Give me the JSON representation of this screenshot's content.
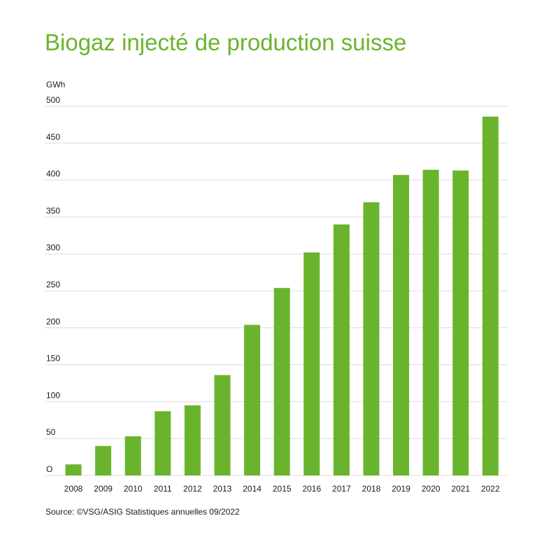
{
  "colors": {
    "bar": "#6ab42d",
    "title": "#6ab42d",
    "grid": "#dcdcdc",
    "text": "#1a1a1a"
  },
  "source": "Source: ©VSG/ASIG Statistiques annuelles 09/2022",
  "chart_data": {
    "type": "bar",
    "title": "Biogaz injecté de production suisse",
    "ylabel": "GWh",
    "xlabel": "",
    "ylim": [
      0,
      500
    ],
    "y_ticks": [
      "O",
      "50",
      "100",
      "150",
      "200",
      "250",
      "300",
      "350",
      "400",
      "450",
      "500"
    ],
    "grid": true,
    "categories": [
      "2008",
      "2009",
      "2010",
      "2011",
      "2012",
      "2013",
      "2014",
      "2015",
      "2016",
      "2017",
      "2018",
      "2019",
      "2020",
      "2021",
      "2022"
    ],
    "values": [
      15,
      40,
      53,
      87,
      95,
      136,
      204,
      254,
      302,
      340,
      370,
      407,
      414,
      413,
      486
    ]
  }
}
